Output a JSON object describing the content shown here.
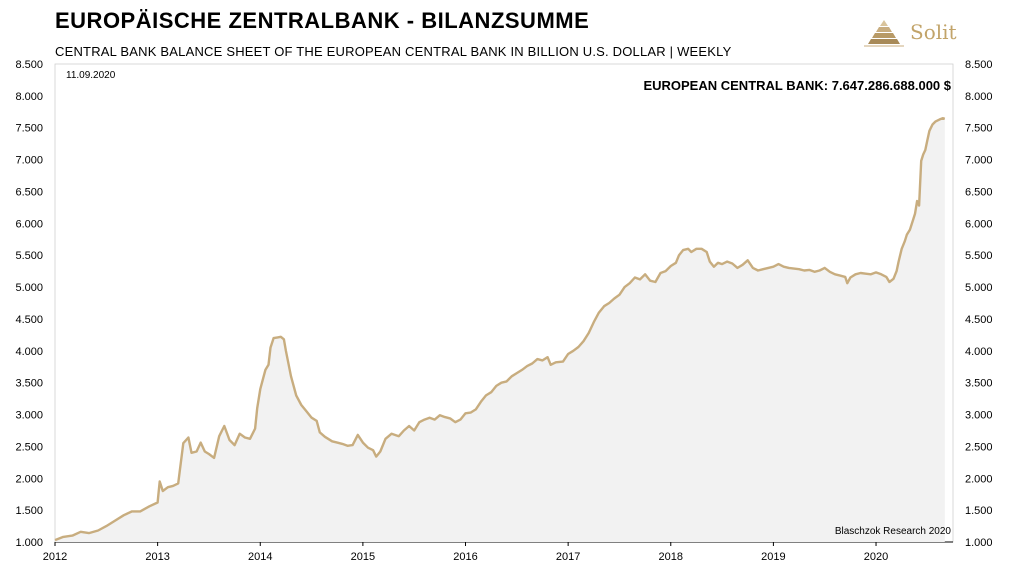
{
  "header": {
    "title": "EUROPÄISCHE ZENTRALBANK - BILANZSUMME",
    "subtitle": "CENTRAL BANK BALANCE SHEET OF THE EUROPEAN CENTRAL BANK IN BILLION U.S. DOLLAR | WEEKLY"
  },
  "logo": {
    "text": "Solit",
    "icon": "pyramid-icon",
    "color": "#c2a46a"
  },
  "chart_data": {
    "type": "area",
    "date_label": "11.09.2020",
    "value_label": "EUROPEAN CENTRAL BANK: 7.647.286.688.000 $",
    "source": "Blaschzok Research 2020",
    "line_color": "#c8ad7f",
    "fill_color": "#f2f2f2",
    "xlim": [
      2012,
      2020.75
    ],
    "ylim": [
      1000,
      8500
    ],
    "x_ticks": [
      2012,
      2013,
      2014,
      2015,
      2016,
      2017,
      2018,
      2019,
      2020
    ],
    "x_tick_labels": [
      "2012",
      "2013",
      "2014",
      "2015",
      "2016",
      "2017",
      "2018",
      "2019",
      "2020"
    ],
    "y_ticks": [
      1000,
      1500,
      2000,
      2500,
      3000,
      3500,
      4000,
      4500,
      5000,
      5500,
      6000,
      6500,
      7000,
      7500,
      8000,
      8500
    ],
    "y_tick_labels": [
      "1.000",
      "1.500",
      "2.000",
      "2.500",
      "3.000",
      "3.500",
      "4.000",
      "4.500",
      "5.000",
      "5.500",
      "6.000",
      "6.500",
      "7.000",
      "7.500",
      "8.000",
      "8.500"
    ],
    "series": [
      {
        "points": [
          [
            2012.0,
            1030
          ],
          [
            2012.08,
            1080
          ],
          [
            2012.17,
            1100
          ],
          [
            2012.25,
            1160
          ],
          [
            2012.33,
            1140
          ],
          [
            2012.42,
            1180
          ],
          [
            2012.5,
            1250
          ],
          [
            2012.58,
            1330
          ],
          [
            2012.67,
            1420
          ],
          [
            2012.75,
            1480
          ],
          [
            2012.83,
            1480
          ],
          [
            2012.92,
            1560
          ],
          [
            2013.0,
            1620
          ],
          [
            2013.02,
            1950
          ],
          [
            2013.05,
            1800
          ],
          [
            2013.1,
            1860
          ],
          [
            2013.15,
            1880
          ],
          [
            2013.2,
            1920
          ],
          [
            2013.25,
            2550
          ],
          [
            2013.3,
            2640
          ],
          [
            2013.33,
            2400
          ],
          [
            2013.38,
            2420
          ],
          [
            2013.42,
            2560
          ],
          [
            2013.46,
            2420
          ],
          [
            2013.5,
            2380
          ],
          [
            2013.55,
            2320
          ],
          [
            2013.6,
            2660
          ],
          [
            2013.65,
            2820
          ],
          [
            2013.7,
            2600
          ],
          [
            2013.75,
            2520
          ],
          [
            2013.8,
            2700
          ],
          [
            2013.85,
            2640
          ],
          [
            2013.9,
            2620
          ],
          [
            2013.95,
            2780
          ],
          [
            2013.97,
            3100
          ],
          [
            2014.0,
            3400
          ],
          [
            2014.05,
            3700
          ],
          [
            2014.08,
            3780
          ],
          [
            2014.1,
            4050
          ],
          [
            2014.13,
            4200
          ],
          [
            2014.17,
            4210
          ],
          [
            2014.2,
            4220
          ],
          [
            2014.23,
            4180
          ],
          [
            2014.25,
            4000
          ],
          [
            2014.3,
            3600
          ],
          [
            2014.35,
            3300
          ],
          [
            2014.4,
            3150
          ],
          [
            2014.45,
            3050
          ],
          [
            2014.5,
            2950
          ],
          [
            2014.55,
            2900
          ],
          [
            2014.58,
            2720
          ],
          [
            2014.63,
            2650
          ],
          [
            2014.7,
            2580
          ],
          [
            2014.75,
            2560
          ],
          [
            2014.8,
            2540
          ],
          [
            2014.85,
            2510
          ],
          [
            2014.9,
            2520
          ],
          [
            2014.95,
            2680
          ],
          [
            2015.0,
            2560
          ],
          [
            2015.05,
            2480
          ],
          [
            2015.1,
            2440
          ],
          [
            2015.13,
            2340
          ],
          [
            2015.17,
            2420
          ],
          [
            2015.22,
            2620
          ],
          [
            2015.28,
            2700
          ],
          [
            2015.35,
            2660
          ],
          [
            2015.4,
            2750
          ],
          [
            2015.45,
            2820
          ],
          [
            2015.5,
            2750
          ],
          [
            2015.55,
            2880
          ],
          [
            2015.6,
            2920
          ],
          [
            2015.65,
            2950
          ],
          [
            2015.7,
            2920
          ],
          [
            2015.75,
            2990
          ],
          [
            2015.8,
            2960
          ],
          [
            2015.85,
            2940
          ],
          [
            2015.9,
            2880
          ],
          [
            2015.95,
            2920
          ],
          [
            2016.0,
            3020
          ],
          [
            2016.05,
            3030
          ],
          [
            2016.1,
            3080
          ],
          [
            2016.15,
            3200
          ],
          [
            2016.2,
            3300
          ],
          [
            2016.25,
            3350
          ],
          [
            2016.3,
            3450
          ],
          [
            2016.35,
            3500
          ],
          [
            2016.4,
            3520
          ],
          [
            2016.45,
            3600
          ],
          [
            2016.5,
            3650
          ],
          [
            2016.55,
            3700
          ],
          [
            2016.6,
            3760
          ],
          [
            2016.65,
            3800
          ],
          [
            2016.7,
            3870
          ],
          [
            2016.75,
            3850
          ],
          [
            2016.8,
            3900
          ],
          [
            2016.83,
            3780
          ],
          [
            2016.88,
            3820
          ],
          [
            2016.95,
            3830
          ],
          [
            2017.0,
            3950
          ],
          [
            2017.05,
            4000
          ],
          [
            2017.1,
            4060
          ],
          [
            2017.15,
            4150
          ],
          [
            2017.2,
            4280
          ],
          [
            2017.25,
            4450
          ],
          [
            2017.3,
            4600
          ],
          [
            2017.35,
            4700
          ],
          [
            2017.4,
            4750
          ],
          [
            2017.45,
            4820
          ],
          [
            2017.5,
            4880
          ],
          [
            2017.55,
            5000
          ],
          [
            2017.6,
            5060
          ],
          [
            2017.65,
            5150
          ],
          [
            2017.7,
            5120
          ],
          [
            2017.75,
            5200
          ],
          [
            2017.8,
            5100
          ],
          [
            2017.85,
            5080
          ],
          [
            2017.9,
            5220
          ],
          [
            2017.95,
            5250
          ],
          [
            2018.0,
            5330
          ],
          [
            2018.05,
            5380
          ],
          [
            2018.08,
            5500
          ],
          [
            2018.12,
            5580
          ],
          [
            2018.17,
            5600
          ],
          [
            2018.2,
            5550
          ],
          [
            2018.25,
            5600
          ],
          [
            2018.3,
            5600
          ],
          [
            2018.35,
            5550
          ],
          [
            2018.38,
            5400
          ],
          [
            2018.42,
            5320
          ],
          [
            2018.46,
            5380
          ],
          [
            2018.5,
            5360
          ],
          [
            2018.55,
            5400
          ],
          [
            2018.6,
            5370
          ],
          [
            2018.65,
            5300
          ],
          [
            2018.7,
            5350
          ],
          [
            2018.75,
            5420
          ],
          [
            2018.8,
            5300
          ],
          [
            2018.85,
            5260
          ],
          [
            2018.9,
            5280
          ],
          [
            2018.95,
            5300
          ],
          [
            2019.0,
            5320
          ],
          [
            2019.05,
            5360
          ],
          [
            2019.1,
            5320
          ],
          [
            2019.15,
            5300
          ],
          [
            2019.2,
            5290
          ],
          [
            2019.25,
            5280
          ],
          [
            2019.3,
            5260
          ],
          [
            2019.35,
            5270
          ],
          [
            2019.4,
            5240
          ],
          [
            2019.45,
            5260
          ],
          [
            2019.5,
            5300
          ],
          [
            2019.55,
            5240
          ],
          [
            2019.6,
            5200
          ],
          [
            2019.65,
            5180
          ],
          [
            2019.7,
            5160
          ],
          [
            2019.72,
            5060
          ],
          [
            2019.75,
            5150
          ],
          [
            2019.8,
            5200
          ],
          [
            2019.85,
            5220
          ],
          [
            2019.9,
            5210
          ],
          [
            2019.95,
            5200
          ],
          [
            2020.0,
            5230
          ],
          [
            2020.05,
            5200
          ],
          [
            2020.1,
            5160
          ],
          [
            2020.13,
            5080
          ],
          [
            2020.17,
            5130
          ],
          [
            2020.2,
            5250
          ],
          [
            2020.22,
            5400
          ],
          [
            2020.25,
            5600
          ],
          [
            2020.28,
            5720
          ],
          [
            2020.3,
            5820
          ],
          [
            2020.33,
            5900
          ],
          [
            2020.36,
            6050
          ],
          [
            2020.38,
            6150
          ],
          [
            2020.4,
            6350
          ],
          [
            2020.42,
            6280
          ],
          [
            2020.44,
            6980
          ],
          [
            2020.46,
            7080
          ],
          [
            2020.48,
            7150
          ],
          [
            2020.5,
            7300
          ],
          [
            2020.52,
            7450
          ],
          [
            2020.55,
            7550
          ],
          [
            2020.58,
            7600
          ],
          [
            2020.62,
            7630
          ],
          [
            2020.65,
            7650
          ],
          [
            2020.67,
            7640
          ]
        ]
      }
    ]
  }
}
